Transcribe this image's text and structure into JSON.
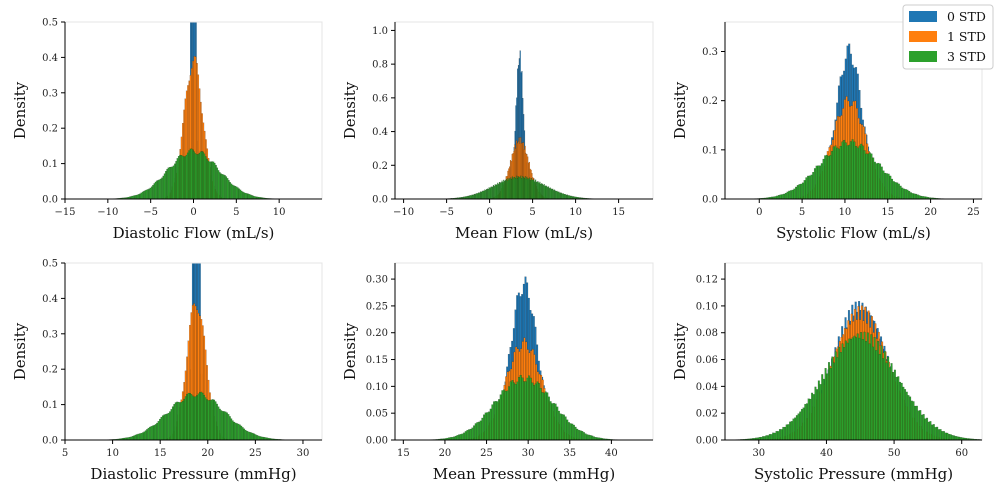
{
  "legend": {
    "placement": "top-right",
    "items": [
      {
        "label": "0 STD",
        "color": "#1f77b4"
      },
      {
        "label": "1 STD",
        "color": "#ff7f0e"
      },
      {
        "label": "3 STD",
        "color": "#2ca02c"
      }
    ]
  },
  "chart_data": [
    {
      "type": "bar",
      "title": "",
      "xlabel": "Diastolic Flow (mL/s)",
      "ylabel": "Density",
      "xlim": [
        -15,
        15
      ],
      "ylim": [
        0,
        0.5
      ],
      "xticks": [
        -15,
        -10,
        -5,
        0,
        5,
        10
      ],
      "yticks": [
        0.0,
        0.1,
        0.2,
        0.3,
        0.4,
        0.5
      ],
      "series": [
        {
          "name": "0 STD",
          "color": "#1f77b4",
          "mean": 0,
          "sd": 0.2,
          "peak": 1.8,
          "binw": 0.15
        },
        {
          "name": "1 STD",
          "color": "#ff7f0e",
          "mean": 0,
          "sd": 1.1,
          "peak": 0.39,
          "binw": 0.15
        },
        {
          "name": "3 STD",
          "color": "#2ca02c",
          "mean": 0,
          "sd": 3.0,
          "peak": 0.135,
          "binw": 0.15
        }
      ]
    },
    {
      "type": "bar",
      "title": "",
      "xlabel": "Mean Flow (mL/s)",
      "ylabel": "Density",
      "xlim": [
        -11,
        19
      ],
      "ylim": [
        0,
        1.05
      ],
      "xticks": [
        -10,
        -5,
        0,
        5,
        10,
        15
      ],
      "yticks": [
        0.0,
        0.2,
        0.4,
        0.6,
        0.8,
        1.0
      ],
      "series": [
        {
          "name": "0 STD",
          "color": "#1f77b4",
          "mean": 3.5,
          "sd": 0.45,
          "peak": 0.85,
          "binw": 0.1
        },
        {
          "name": "1 STD",
          "color": "#ff7f0e",
          "mean": 3.5,
          "sd": 1.1,
          "peak": 0.35,
          "binw": 0.1
        },
        {
          "name": "3 STD",
          "color": "#2ca02c",
          "mean": 3.5,
          "sd": 3.0,
          "peak": 0.13,
          "binw": 0.1
        }
      ]
    },
    {
      "type": "bar",
      "title": "",
      "xlabel": "Systolic Flow (mL/s)",
      "ylabel": "Density",
      "xlim": [
        -4,
        26
      ],
      "ylim": [
        0,
        0.36
      ],
      "xticks": [
        0,
        5,
        10,
        15,
        20,
        25
      ],
      "yticks": [
        0.0,
        0.1,
        0.2,
        0.3
      ],
      "series": [
        {
          "name": "0 STD",
          "color": "#1f77b4",
          "mean": 10.5,
          "sd": 1.5,
          "peak": 0.3,
          "binw": 0.2
        },
        {
          "name": "1 STD",
          "color": "#ff7f0e",
          "mean": 10.5,
          "sd": 2.0,
          "peak": 0.2,
          "binw": 0.2
        },
        {
          "name": "3 STD",
          "color": "#2ca02c",
          "mean": 10.5,
          "sd": 3.5,
          "peak": 0.115,
          "binw": 0.2
        }
      ]
    },
    {
      "type": "bar",
      "title": "",
      "xlabel": "Diastolic Pressure (mmHg)",
      "ylabel": "Density",
      "xlim": [
        5,
        32
      ],
      "ylim": [
        0,
        0.5
      ],
      "xticks": [
        5,
        10,
        15,
        20,
        25,
        30
      ],
      "yticks": [
        0.0,
        0.1,
        0.2,
        0.3,
        0.4,
        0.5
      ],
      "series": [
        {
          "name": "0 STD",
          "color": "#1f77b4",
          "mean": 18.8,
          "sd": 0.25,
          "peak": 1.8,
          "binw": 0.15
        },
        {
          "name": "1 STD",
          "color": "#ff7f0e",
          "mean": 18.8,
          "sd": 1.0,
          "peak": 0.39,
          "binw": 0.15
        },
        {
          "name": "3 STD",
          "color": "#2ca02c",
          "mean": 18.8,
          "sd": 3.0,
          "peak": 0.13,
          "binw": 0.15
        }
      ]
    },
    {
      "type": "bar",
      "title": "",
      "xlabel": "Mean Pressure (mmHg)",
      "ylabel": "Density",
      "xlim": [
        14,
        45
      ],
      "ylim": [
        0,
        0.33
      ],
      "xticks": [
        15,
        20,
        25,
        30,
        35,
        40
      ],
      "yticks": [
        0.0,
        0.05,
        0.1,
        0.15,
        0.2,
        0.25,
        0.3
      ],
      "series": [
        {
          "name": "0 STD",
          "color": "#1f77b4",
          "mean": 29.5,
          "sd": 1.6,
          "peak": 0.29,
          "binw": 0.2
        },
        {
          "name": "1 STD",
          "color": "#ff7f0e",
          "mean": 29.5,
          "sd": 2.2,
          "peak": 0.18,
          "binw": 0.2
        },
        {
          "name": "3 STD",
          "color": "#2ca02c",
          "mean": 29.5,
          "sd": 3.5,
          "peak": 0.115,
          "binw": 0.2
        }
      ]
    },
    {
      "type": "bar",
      "title": "",
      "xlabel": "Systolic Pressure (mmHg)",
      "ylabel": "Density",
      "xlim": [
        25,
        63
      ],
      "ylim": [
        0,
        0.132
      ],
      "xticks": [
        30,
        40,
        50,
        60
      ],
      "yticks": [
        0.0,
        0.02,
        0.04,
        0.06,
        0.08,
        0.1,
        0.12
      ],
      "series": [
        {
          "name": "0 STD",
          "color": "#1f77b4",
          "mean": 45,
          "sd": 4.0,
          "peak": 0.1,
          "binw": 0.25
        },
        {
          "name": "1 STD",
          "color": "#ff7f0e",
          "mean": 45,
          "sd": 4.2,
          "peak": 0.095,
          "binw": 0.25
        },
        {
          "name": "3 STD",
          "color": "#2ca02c",
          "mean": 45,
          "sd": 5.5,
          "peak": 0.078,
          "binw": 0.25
        }
      ]
    }
  ]
}
